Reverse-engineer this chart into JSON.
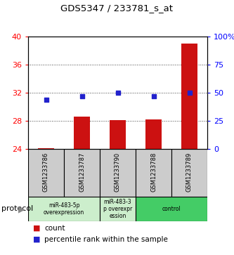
{
  "title": "GDS5347 / 233781_s_at",
  "samples": [
    "GSM1233786",
    "GSM1233787",
    "GSM1233790",
    "GSM1233788",
    "GSM1233789"
  ],
  "bar_values": [
    24.1,
    28.6,
    28.1,
    28.2,
    39.0
  ],
  "percentile_values": [
    43.75,
    46.875,
    50.0,
    46.875,
    50.0
  ],
  "ylim_left": [
    24,
    40
  ],
  "ylim_right": [
    0,
    100
  ],
  "yticks_left": [
    24,
    28,
    32,
    36,
    40
  ],
  "yticks_right": [
    0,
    25,
    50,
    75,
    100
  ],
  "ytick_labels_right": [
    "0",
    "25",
    "50",
    "75",
    "100%"
  ],
  "bar_color": "#cc1111",
  "dot_color": "#2222cc",
  "bar_bottom": 24.0,
  "groups": [
    {
      "cols": [
        0,
        1
      ],
      "label": "miR-483-5p\noverexpression",
      "color": "#cceecc"
    },
    {
      "cols": [
        2
      ],
      "label": "miR-483-3\np overexpr\nession",
      "color": "#cceecc"
    },
    {
      "cols": [
        3,
        4
      ],
      "label": "control",
      "color": "#44cc66"
    }
  ],
  "background_color": "#ffffff",
  "plot_bg": "#ffffff",
  "sample_box_color": "#cccccc",
  "grid_color": "#444444"
}
